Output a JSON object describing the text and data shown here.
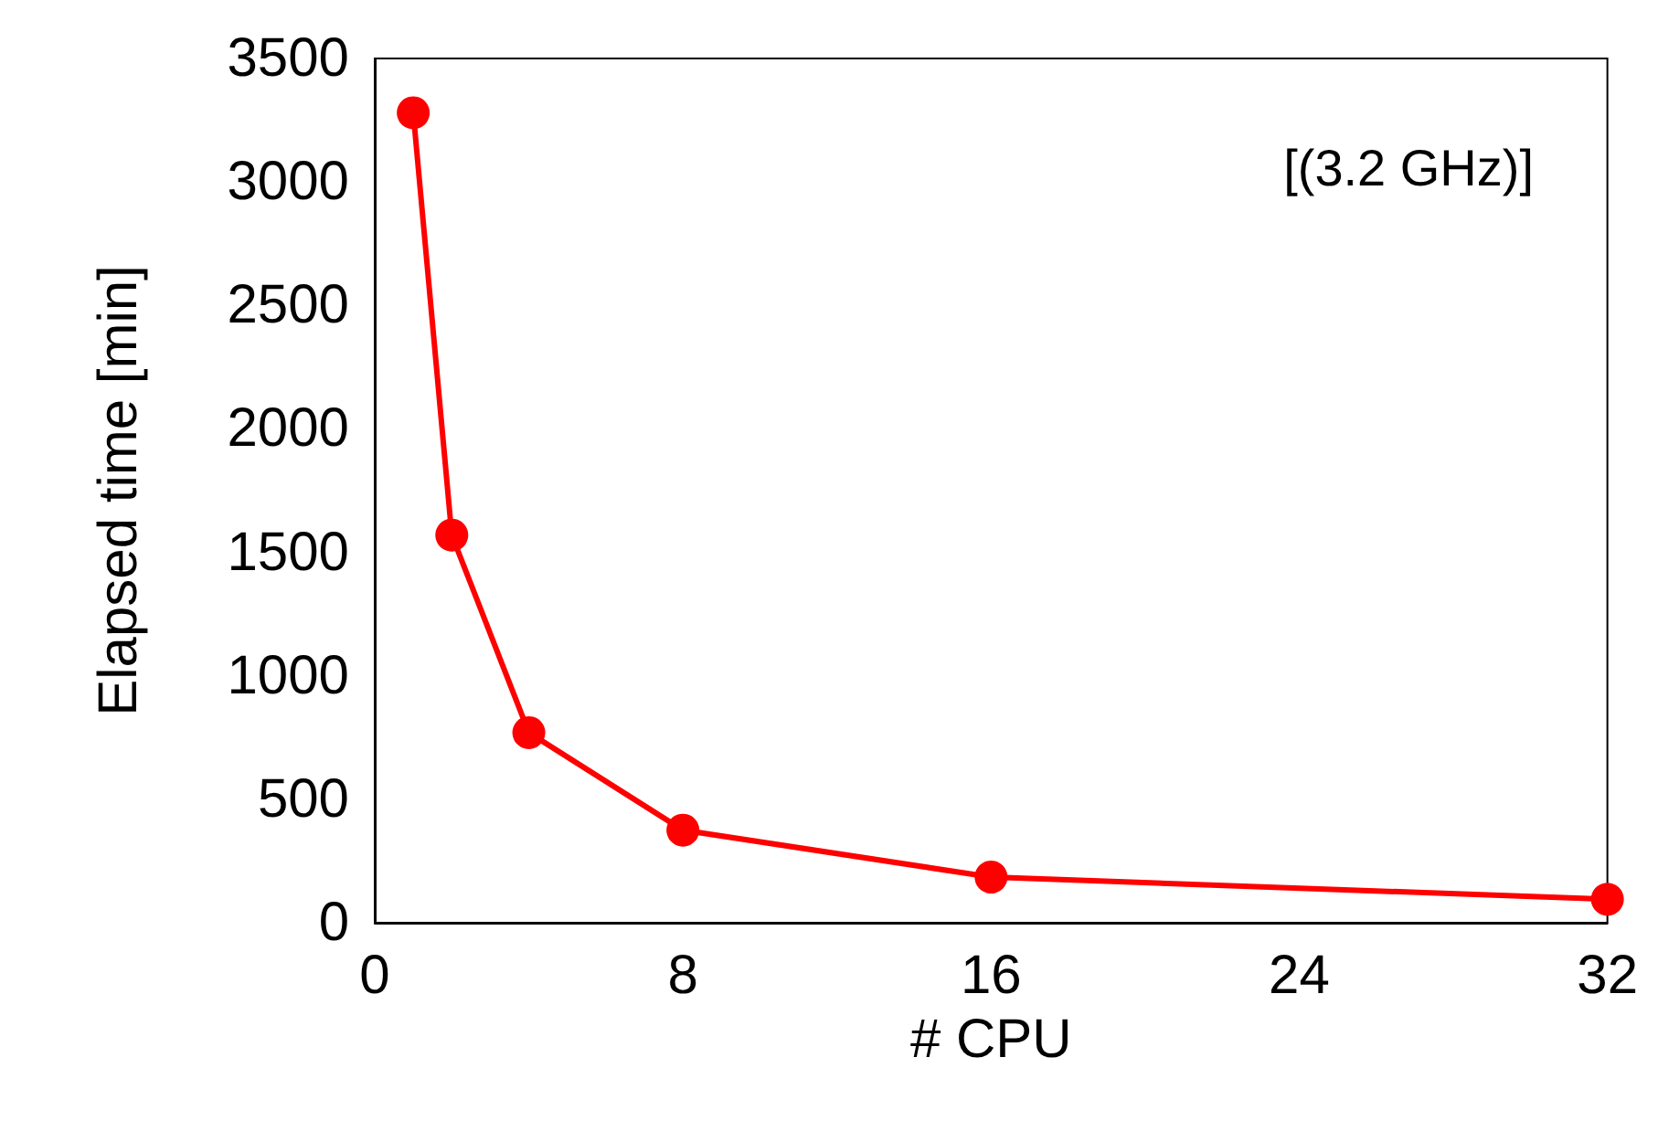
{
  "chart_data": {
    "type": "line",
    "xlabel": "# CPU",
    "ylabel": "Elapsed time [min]",
    "annotations": [
      "[(3.2 GHz)]"
    ],
    "x": [
      1,
      2,
      4,
      8,
      16,
      32
    ],
    "series": [
      {
        "color": "#ff0000",
        "values": [
          3280,
          1570,
          770,
          375,
          185,
          95
        ]
      }
    ],
    "xlim": [
      0,
      32
    ],
    "xticks": [
      0,
      8,
      16,
      24,
      32
    ],
    "ylim": [
      0,
      3500
    ],
    "yticks": [
      0,
      500,
      1000,
      1500,
      2000,
      2500,
      3000,
      3500
    ],
    "grid": false,
    "marker": "circle",
    "line_style": "solid"
  }
}
